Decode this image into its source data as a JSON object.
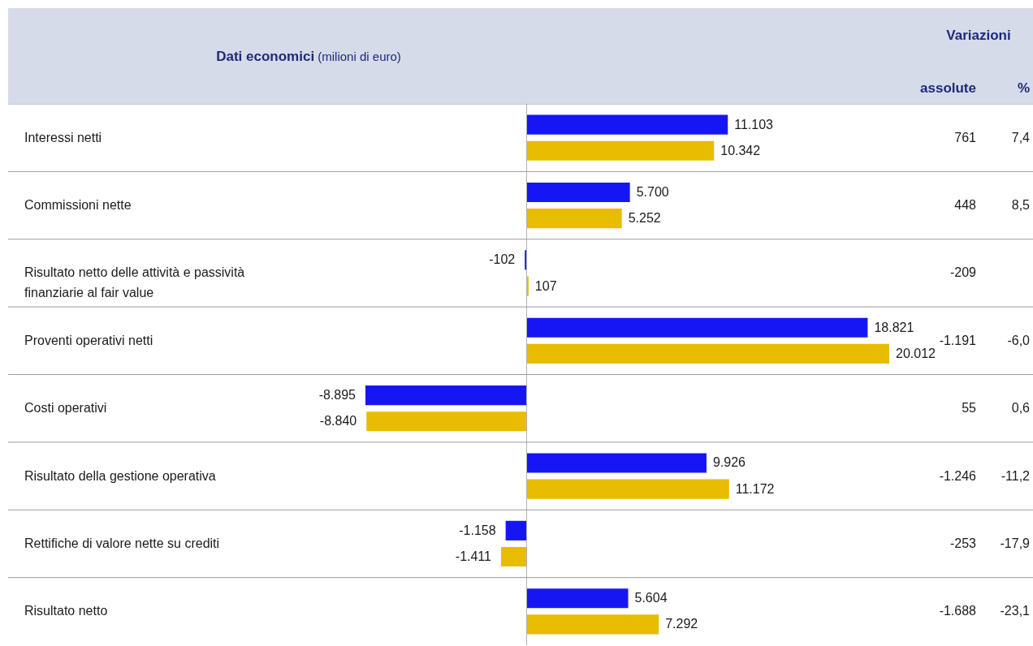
{
  "chart_data": {
    "type": "bar",
    "orientation": "horizontal",
    "title": "Dati economici (milioni di euro)",
    "categories": [
      "Interessi netti",
      "Commissioni nette",
      "Risultato netto delle attività e passività finanziarie al fair value",
      "Proventi operativi netti",
      "Costi operativi",
      "Risultato della gestione operativa",
      "Rettifiche di valore nette su crediti",
      "Risultato netto"
    ],
    "series": [
      {
        "color": "#1616f5",
        "values": [
          11103,
          5700,
          -102,
          18821,
          -8895,
          9926,
          -1158,
          5604
        ],
        "value_labels": [
          "11.103",
          "5.700",
          "-102",
          "18.821",
          "-8.895",
          "9.926",
          "-1.158",
          "5.604"
        ]
      },
      {
        "color": "#e8bc00",
        "values": [
          10342,
          5252,
          107,
          20012,
          -8840,
          11172,
          -1411,
          7292
        ],
        "value_labels": [
          "10.342",
          "5.252",
          "107",
          "20.012",
          "-8.840",
          "11.172",
          "-1.411",
          "7.292"
        ]
      }
    ],
    "grid": "y",
    "annotations": [
      "Variazioni",
      "assolute",
      "%",
      "761",
      "448",
      "-209",
      "-1.191",
      "55",
      "-1.246",
      "-253",
      "-1.688",
      "7,4",
      "8,5",
      "-6,0",
      "0,6",
      "-11,2",
      "-17,9",
      "-23,1"
    ]
  }
}
